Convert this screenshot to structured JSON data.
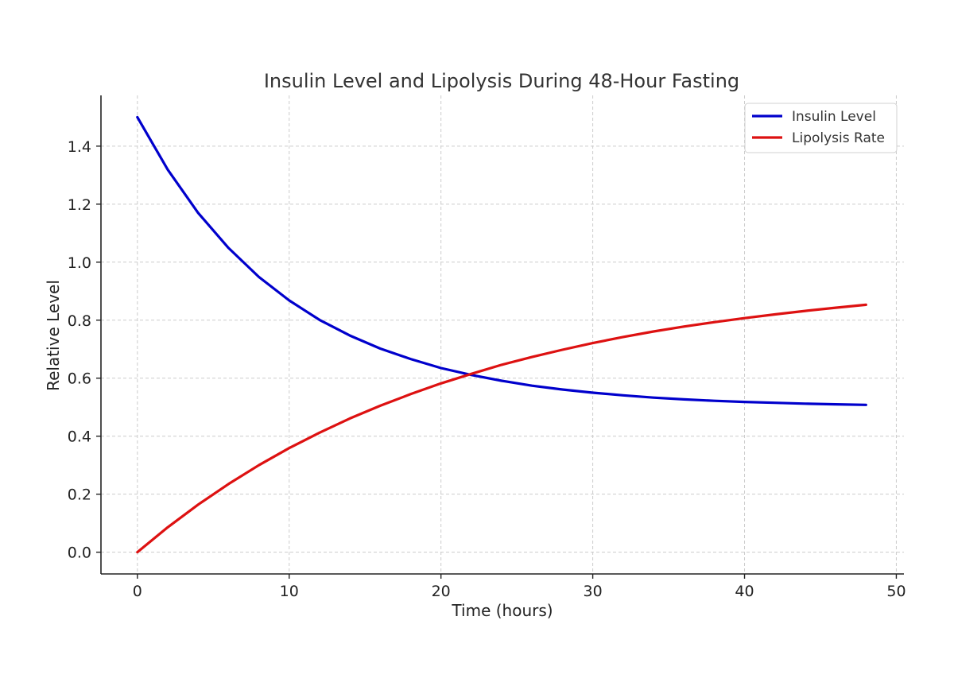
{
  "chart_data": {
    "type": "line",
    "title": "Insulin Level and Lipolysis During 48-Hour Fasting",
    "xlabel": "Time (hours)",
    "ylabel": "Relative Level",
    "xlim": [
      -2.4,
      50.5
    ],
    "ylim": [
      -0.075,
      1.575
    ],
    "x_ticks": [
      0,
      10,
      20,
      30,
      40,
      50
    ],
    "x_tick_labels": [
      "0",
      "10",
      "20",
      "30",
      "40",
      "50"
    ],
    "y_ticks": [
      0.0,
      0.2,
      0.4,
      0.6,
      0.8,
      1.0,
      1.2,
      1.4
    ],
    "y_tick_labels": [
      "0.0",
      "0.2",
      "0.4",
      "0.6",
      "0.8",
      "1.0",
      "1.2",
      "1.4"
    ],
    "grid": true,
    "legend_position": "top-right",
    "x": [
      0,
      2,
      4,
      6,
      8,
      10,
      12,
      14,
      16,
      18,
      20,
      22,
      24,
      26,
      28,
      30,
      32,
      34,
      36,
      38,
      40,
      42,
      44,
      46,
      48
    ],
    "series": [
      {
        "name": "Insulin Level",
        "color": "#0000cc",
        "values": [
          1.5,
          1.319,
          1.17,
          1.049,
          0.949,
          0.868,
          0.801,
          0.747,
          0.702,
          0.666,
          0.635,
          0.611,
          0.591,
          0.574,
          0.561,
          0.55,
          0.541,
          0.533,
          0.527,
          0.522,
          0.518,
          0.515,
          0.512,
          0.51,
          0.508
        ]
      },
      {
        "name": "Lipolysis Rate",
        "color": "#dd1111",
        "values": [
          0.0,
          0.086,
          0.164,
          0.235,
          0.3,
          0.359,
          0.412,
          0.461,
          0.505,
          0.545,
          0.582,
          0.615,
          0.646,
          0.673,
          0.698,
          0.721,
          0.742,
          0.761,
          0.778,
          0.793,
          0.807,
          0.82,
          0.832,
          0.843,
          0.853
        ]
      }
    ]
  }
}
